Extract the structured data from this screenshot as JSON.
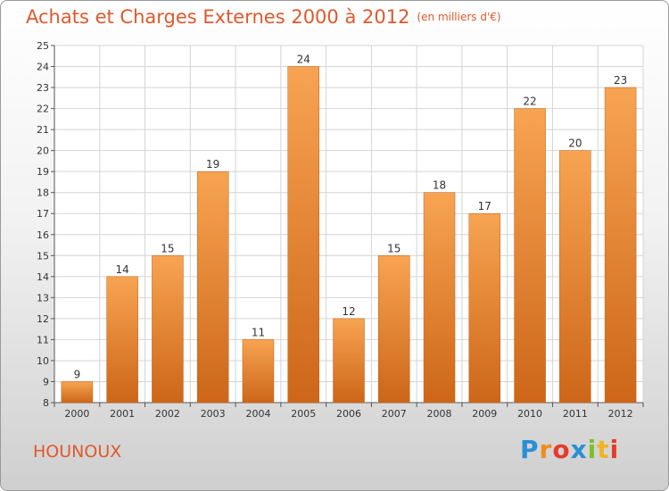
{
  "chart_data": {
    "type": "bar",
    "title": "Achats et Charges Externes 2000 à 2012",
    "subtitle": "(en milliers d'€)",
    "categories": [
      "2000",
      "2001",
      "2002",
      "2003",
      "2004",
      "2005",
      "2006",
      "2007",
      "2008",
      "2009",
      "2010",
      "2011",
      "2012"
    ],
    "values": [
      9,
      14,
      15,
      19,
      11,
      24,
      12,
      15,
      18,
      17,
      22,
      20,
      23
    ],
    "ylim": [
      8,
      25
    ],
    "yticks": [
      8,
      9,
      10,
      11,
      12,
      13,
      14,
      15,
      16,
      17,
      18,
      19,
      20,
      21,
      22,
      23,
      24,
      25
    ],
    "grid": true,
    "bar_color_top": "#f7a452",
    "bar_color_bottom": "#cd6618"
  },
  "location": "HOUNOUX",
  "brand": "Proxiti"
}
